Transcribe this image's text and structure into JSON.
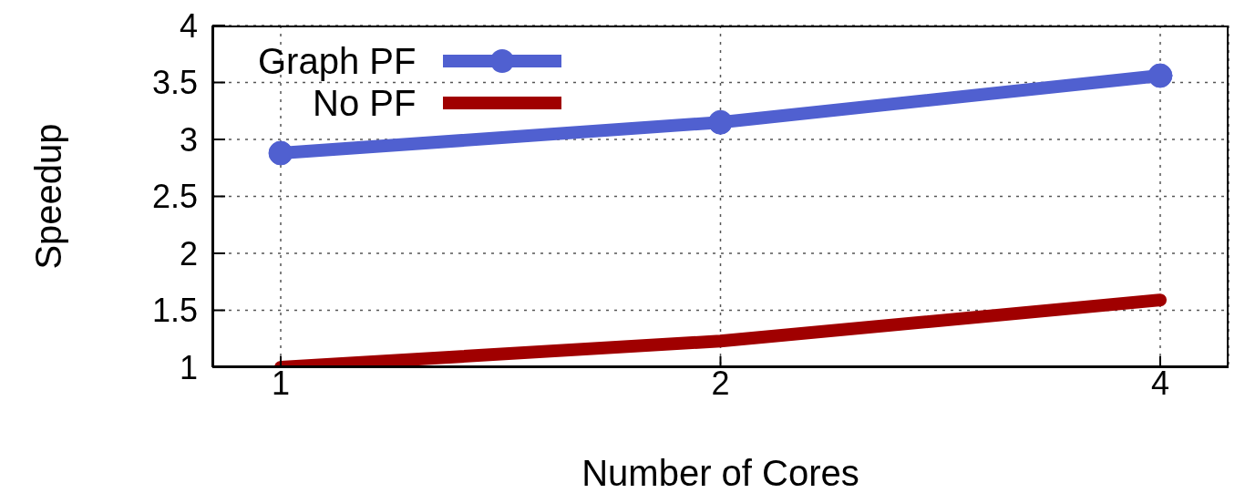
{
  "chart_data": {
    "type": "line",
    "xlabel": "Number of Cores",
    "ylabel": "Speedup",
    "categories": [
      "1",
      "2",
      "4"
    ],
    "series": [
      {
        "name": "Graph PF",
        "color": "#5060d0",
        "values": [
          2.88,
          3.15,
          3.56
        ],
        "marker": "circle"
      },
      {
        "name": "No PF",
        "color": "#a00000",
        "values": [
          1.0,
          1.23,
          1.59
        ],
        "marker": "none"
      }
    ],
    "ylim": [
      1,
      4
    ],
    "yticks": [
      1,
      1.5,
      2,
      2.5,
      3,
      3.5,
      4
    ],
    "grid": true,
    "legend": "top left",
    "line_style": "solid"
  }
}
